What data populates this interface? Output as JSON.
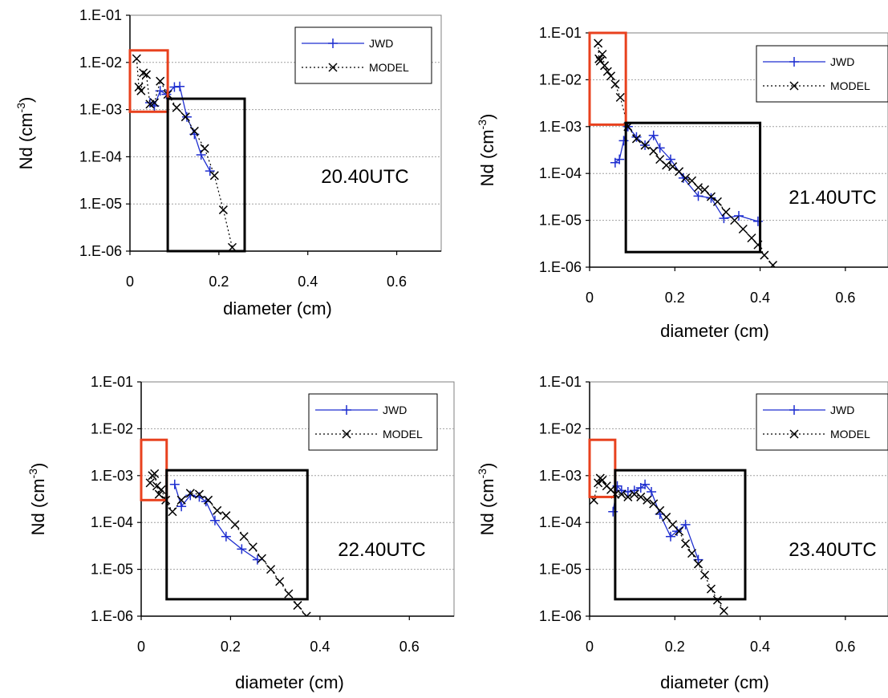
{
  "colors": {
    "jwd": "#1f2fd0",
    "model": "#000000",
    "red_box": "#e8411e",
    "black_box": "#000000",
    "plot_border": "#808080",
    "grid": "#a0a0a0"
  },
  "chart_data": [
    {
      "type": "line",
      "annotation": "20.40UTC",
      "xlabel": "diameter (cm)",
      "ylabel": "Nd (cm",
      "ylabel_sup": "-3",
      "ylabel_close": ")",
      "yscale": "log",
      "xlim": [
        0,
        0.7
      ],
      "ylim": [
        1e-06,
        0.1
      ],
      "x_ticks": [
        "0",
        "0.2",
        "0.4",
        "0.6"
      ],
      "y_ticks": [
        "1.E-06",
        "1.E-05",
        "1.E-04",
        "1.E-03",
        "1.E-02",
        "1.E-01"
      ],
      "legend": [
        "JWD",
        "MODEL"
      ],
      "grid": "horizontal",
      "series": [
        {
          "name": "JWD",
          "x": [
            0.045,
            0.055,
            0.068,
            0.082,
            0.1,
            0.112,
            0.128,
            0.145,
            0.16,
            0.18
          ],
          "y": [
            0.0014,
            0.0012,
            0.0025,
            0.0021,
            0.003,
            0.0031,
            0.0007,
            0.0003,
            0.00011,
            5e-05
          ]
        },
        {
          "name": "MODEL",
          "x": [
            0.015,
            0.02,
            0.025,
            0.03,
            0.037,
            0.045,
            0.055,
            0.068,
            0.085,
            0.105,
            0.125,
            0.145,
            0.168,
            0.19,
            0.21,
            0.23
          ],
          "y": [
            0.012,
            0.003,
            0.0025,
            0.006,
            0.0055,
            0.0013,
            0.0014,
            0.004,
            0.0021,
            0.0011,
            0.0007,
            0.00035,
            0.00015,
            4e-05,
            7.5e-06,
            1.2e-06
          ]
        }
      ],
      "red_box": {
        "x": [
          0.0,
          0.085
        ],
        "y": [
          0.0009,
          0.018
        ]
      },
      "black_box": {
        "x": [
          0.085,
          0.258
        ],
        "y": [
          1e-06,
          0.0017
        ]
      }
    },
    {
      "type": "line",
      "annotation": "21.40UTC",
      "xlabel": "diameter (cm)",
      "ylabel": "Nd (cm",
      "ylabel_sup": "-3",
      "ylabel_close": ")",
      "yscale": "log",
      "xlim": [
        0,
        0.7
      ],
      "ylim": [
        1e-06,
        0.1
      ],
      "x_ticks": [
        "0",
        "0.2",
        "0.4",
        "0.6"
      ],
      "y_ticks": [
        "1.E-06",
        "1.E-05",
        "1.E-04",
        "1.E-03",
        "1.E-02",
        "1.E-01"
      ],
      "legend": [
        "JWD",
        "MODEL"
      ],
      "grid": "horizontal",
      "series": [
        {
          "name": "JWD",
          "x": [
            0.06,
            0.07,
            0.08,
            0.09,
            0.11,
            0.13,
            0.15,
            0.165,
            0.19,
            0.22,
            0.255,
            0.285,
            0.315,
            0.35,
            0.395
          ],
          "y": [
            0.00017,
            0.0002,
            0.0005,
            0.001,
            0.0006,
            0.0004,
            0.00065,
            0.00035,
            0.0002,
            8e-05,
            3.3e-05,
            3e-05,
            1.1e-05,
            1.25e-05,
            9.5e-06
          ]
        },
        {
          "name": "MODEL",
          "x": [
            0.02,
            0.022,
            0.025,
            0.03,
            0.035,
            0.042,
            0.05,
            0.06,
            0.072,
            0.09,
            0.11,
            0.13,
            0.15,
            0.165,
            0.18,
            0.195,
            0.21,
            0.225,
            0.24,
            0.255,
            0.27,
            0.285,
            0.3,
            0.32,
            0.34,
            0.36,
            0.38,
            0.395,
            0.41,
            0.43
          ],
          "y": [
            0.06,
            0.028,
            0.025,
            0.035,
            0.02,
            0.015,
            0.012,
            0.008,
            0.0042,
            0.001,
            0.00055,
            0.0004,
            0.0003,
            0.0002,
            0.00015,
            0.00014,
            0.00011,
            8e-05,
            7e-05,
            5e-05,
            4.5e-05,
            3.2e-05,
            2.5e-05,
            1.5e-05,
            1e-05,
            6.5e-06,
            4.2e-06,
            3e-06,
            1.8e-06,
            1.1e-06
          ]
        }
      ],
      "red_box": {
        "x": [
          0.0,
          0.085
        ],
        "y": [
          0.0011,
          0.1
        ]
      },
      "black_box": {
        "x": [
          0.085,
          0.4
        ],
        "y": [
          2.1e-06,
          0.0012
        ]
      }
    },
    {
      "type": "line",
      "annotation": "22.40UTC",
      "xlabel": "diameter (cm)",
      "ylabel": "Nd (cm",
      "ylabel_sup": "-3",
      "ylabel_close": ")",
      "yscale": "log",
      "xlim": [
        0,
        0.7
      ],
      "ylim": [
        1e-06,
        0.1
      ],
      "x_ticks": [
        "0",
        "0.2",
        "0.4",
        "0.6"
      ],
      "y_ticks": [
        "1.E-06",
        "1.E-05",
        "1.E-04",
        "1.E-03",
        "1.E-02",
        "1.E-01"
      ],
      "legend": [
        "JWD",
        "MODEL"
      ],
      "grid": "horizontal",
      "series": [
        {
          "name": "JWD",
          "x": [
            0.075,
            0.09,
            0.11,
            0.13,
            0.145,
            0.165,
            0.19,
            0.225,
            0.26
          ],
          "y": [
            0.00065,
            0.00022,
            0.00038,
            0.00035,
            0.00028,
            0.00011,
            5e-05,
            2.7e-05,
            1.6e-05
          ]
        },
        {
          "name": "MODEL",
          "x": [
            0.02,
            0.025,
            0.03,
            0.035,
            0.04,
            0.045,
            0.055,
            0.07,
            0.09,
            0.11,
            0.13,
            0.15,
            0.17,
            0.19,
            0.21,
            0.23,
            0.25,
            0.27,
            0.29,
            0.31,
            0.33,
            0.35,
            0.37
          ],
          "y": [
            0.0007,
            0.001,
            0.0011,
            0.0006,
            0.0004,
            0.0005,
            0.0003,
            0.00017,
            0.0003,
            0.00042,
            0.0004,
            0.0003,
            0.00018,
            0.00014,
            9e-05,
            5e-05,
            3e-05,
            1.7e-05,
            1e-05,
            5.5e-06,
            3e-06,
            1.7e-06,
            1e-06
          ]
        }
      ],
      "red_box": {
        "x": [
          0.0,
          0.057
        ],
        "y": [
          0.0003,
          0.0058
        ]
      },
      "black_box": {
        "x": [
          0.057,
          0.372
        ],
        "y": [
          2.3e-06,
          0.0013
        ]
      }
    },
    {
      "type": "line",
      "annotation": "23.40UTC",
      "xlabel": "diameter (cm)",
      "ylabel": "Nd (cm",
      "ylabel_sup": "-3",
      "ylabel_close": ")",
      "yscale": "log",
      "xlim": [
        0,
        0.7
      ],
      "ylim": [
        1e-06,
        0.1
      ],
      "x_ticks": [
        "0",
        "0.2",
        "0.4",
        "0.6"
      ],
      "y_ticks": [
        "1.E-06",
        "1.E-05",
        "1.E-04",
        "1.E-03",
        "1.E-02",
        "1.E-01"
      ],
      "legend": [
        "JWD",
        "MODEL"
      ],
      "grid": "horizontal",
      "series": [
        {
          "name": "JWD",
          "x": [
            0.055,
            0.065,
            0.075,
            0.09,
            0.105,
            0.12,
            0.13,
            0.145,
            0.165,
            0.19,
            0.205,
            0.225,
            0.255
          ],
          "y": [
            0.00017,
            0.0006,
            0.00048,
            0.00045,
            0.00048,
            0.00055,
            0.00065,
            0.00045,
            0.00015,
            5e-05,
            6.5e-05,
            9e-05,
            1.6e-05
          ]
        },
        {
          "name": "MODEL",
          "x": [
            0.01,
            0.02,
            0.025,
            0.03,
            0.04,
            0.05,
            0.06,
            0.075,
            0.09,
            0.105,
            0.12,
            0.135,
            0.15,
            0.165,
            0.18,
            0.195,
            0.21,
            0.225,
            0.24,
            0.255,
            0.27,
            0.285,
            0.3,
            0.315
          ],
          "y": [
            0.0003,
            0.0007,
            0.00088,
            0.0008,
            0.0006,
            0.0005,
            0.0004,
            0.0004,
            0.00035,
            0.0004,
            0.00035,
            0.0003,
            0.00025,
            0.00018,
            0.00013,
            9e-05,
            6.5e-05,
            3.5e-05,
            2.2e-05,
            1.3e-05,
            7.5e-06,
            3.8e-06,
            2.2e-06,
            1.3e-06
          ]
        }
      ],
      "red_box": {
        "x": [
          0.0,
          0.06
        ],
        "y": [
          0.00035,
          0.0058
        ]
      },
      "black_box": {
        "x": [
          0.06,
          0.365
        ],
        "y": [
          2.3e-06,
          0.0013
        ]
      }
    }
  ]
}
